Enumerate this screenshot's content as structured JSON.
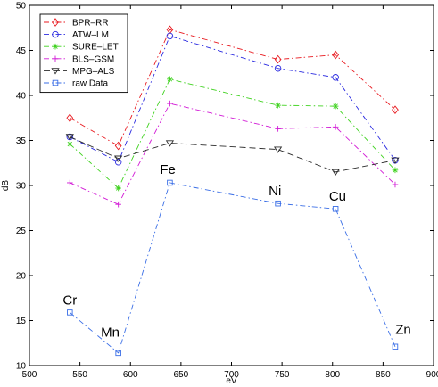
{
  "chart_data": {
    "type": "line",
    "xlabel": "eV",
    "ylabel": "dB",
    "xlim": [
      500,
      900
    ],
    "ylim": [
      10,
      50
    ],
    "x_ticks": [
      500,
      550,
      600,
      650,
      700,
      750,
      800,
      850,
      900
    ],
    "y_ticks": [
      10,
      15,
      20,
      25,
      30,
      35,
      40,
      45,
      50
    ],
    "x": [
      540,
      588,
      639,
      746,
      803,
      862
    ],
    "grid": false,
    "legend_position": "top-left",
    "series": [
      {
        "name": "BPR–RR",
        "color": "#e8191f",
        "dash": "6,3,1.5,3",
        "marker": "diamond",
        "values": [
          37.5,
          34.4,
          47.3,
          44.0,
          44.5,
          38.4
        ]
      },
      {
        "name": "ATW–LM",
        "color": "#2a2ae0",
        "dash": "6,3,1.5,3",
        "marker": "circle",
        "values": [
          35.4,
          32.6,
          46.6,
          43.0,
          42.0,
          32.8
        ]
      },
      {
        "name": "SURE–LET",
        "color": "#3fd21f",
        "dash": "6,3,1.5,3",
        "marker": "star",
        "values": [
          34.6,
          29.7,
          41.8,
          38.9,
          38.8,
          31.7
        ]
      },
      {
        "name": "BLS–GSM",
        "color": "#d21bd6",
        "dash": "6,3,1.5,3",
        "marker": "plus",
        "values": [
          30.3,
          27.9,
          39.1,
          36.3,
          36.5,
          30.1
        ]
      },
      {
        "name": "MPG–ALS",
        "color": "#2b2b2b",
        "dash": "7,4",
        "marker": "triangle-down",
        "values": [
          35.4,
          33.0,
          34.7,
          34.0,
          31.5,
          32.8
        ]
      },
      {
        "name": "raw Data",
        "color": "#3a6ee6",
        "dash": "6,3,1.5,3",
        "marker": "square",
        "values": [
          15.9,
          11.4,
          30.3,
          28.0,
          27.4,
          12.1
        ]
      }
    ],
    "annotations": [
      {
        "text": "Cr",
        "x": 540,
        "y": 16.8
      },
      {
        "text": "Mn",
        "x": 580,
        "y": 13.2
      },
      {
        "text": "Fe",
        "x": 637,
        "y": 31.3
      },
      {
        "text": "Ni",
        "x": 743,
        "y": 28.9
      },
      {
        "text": "Cu",
        "x": 805,
        "y": 28.3
      },
      {
        "text": "Zn",
        "x": 870,
        "y": 13.5
      }
    ]
  }
}
